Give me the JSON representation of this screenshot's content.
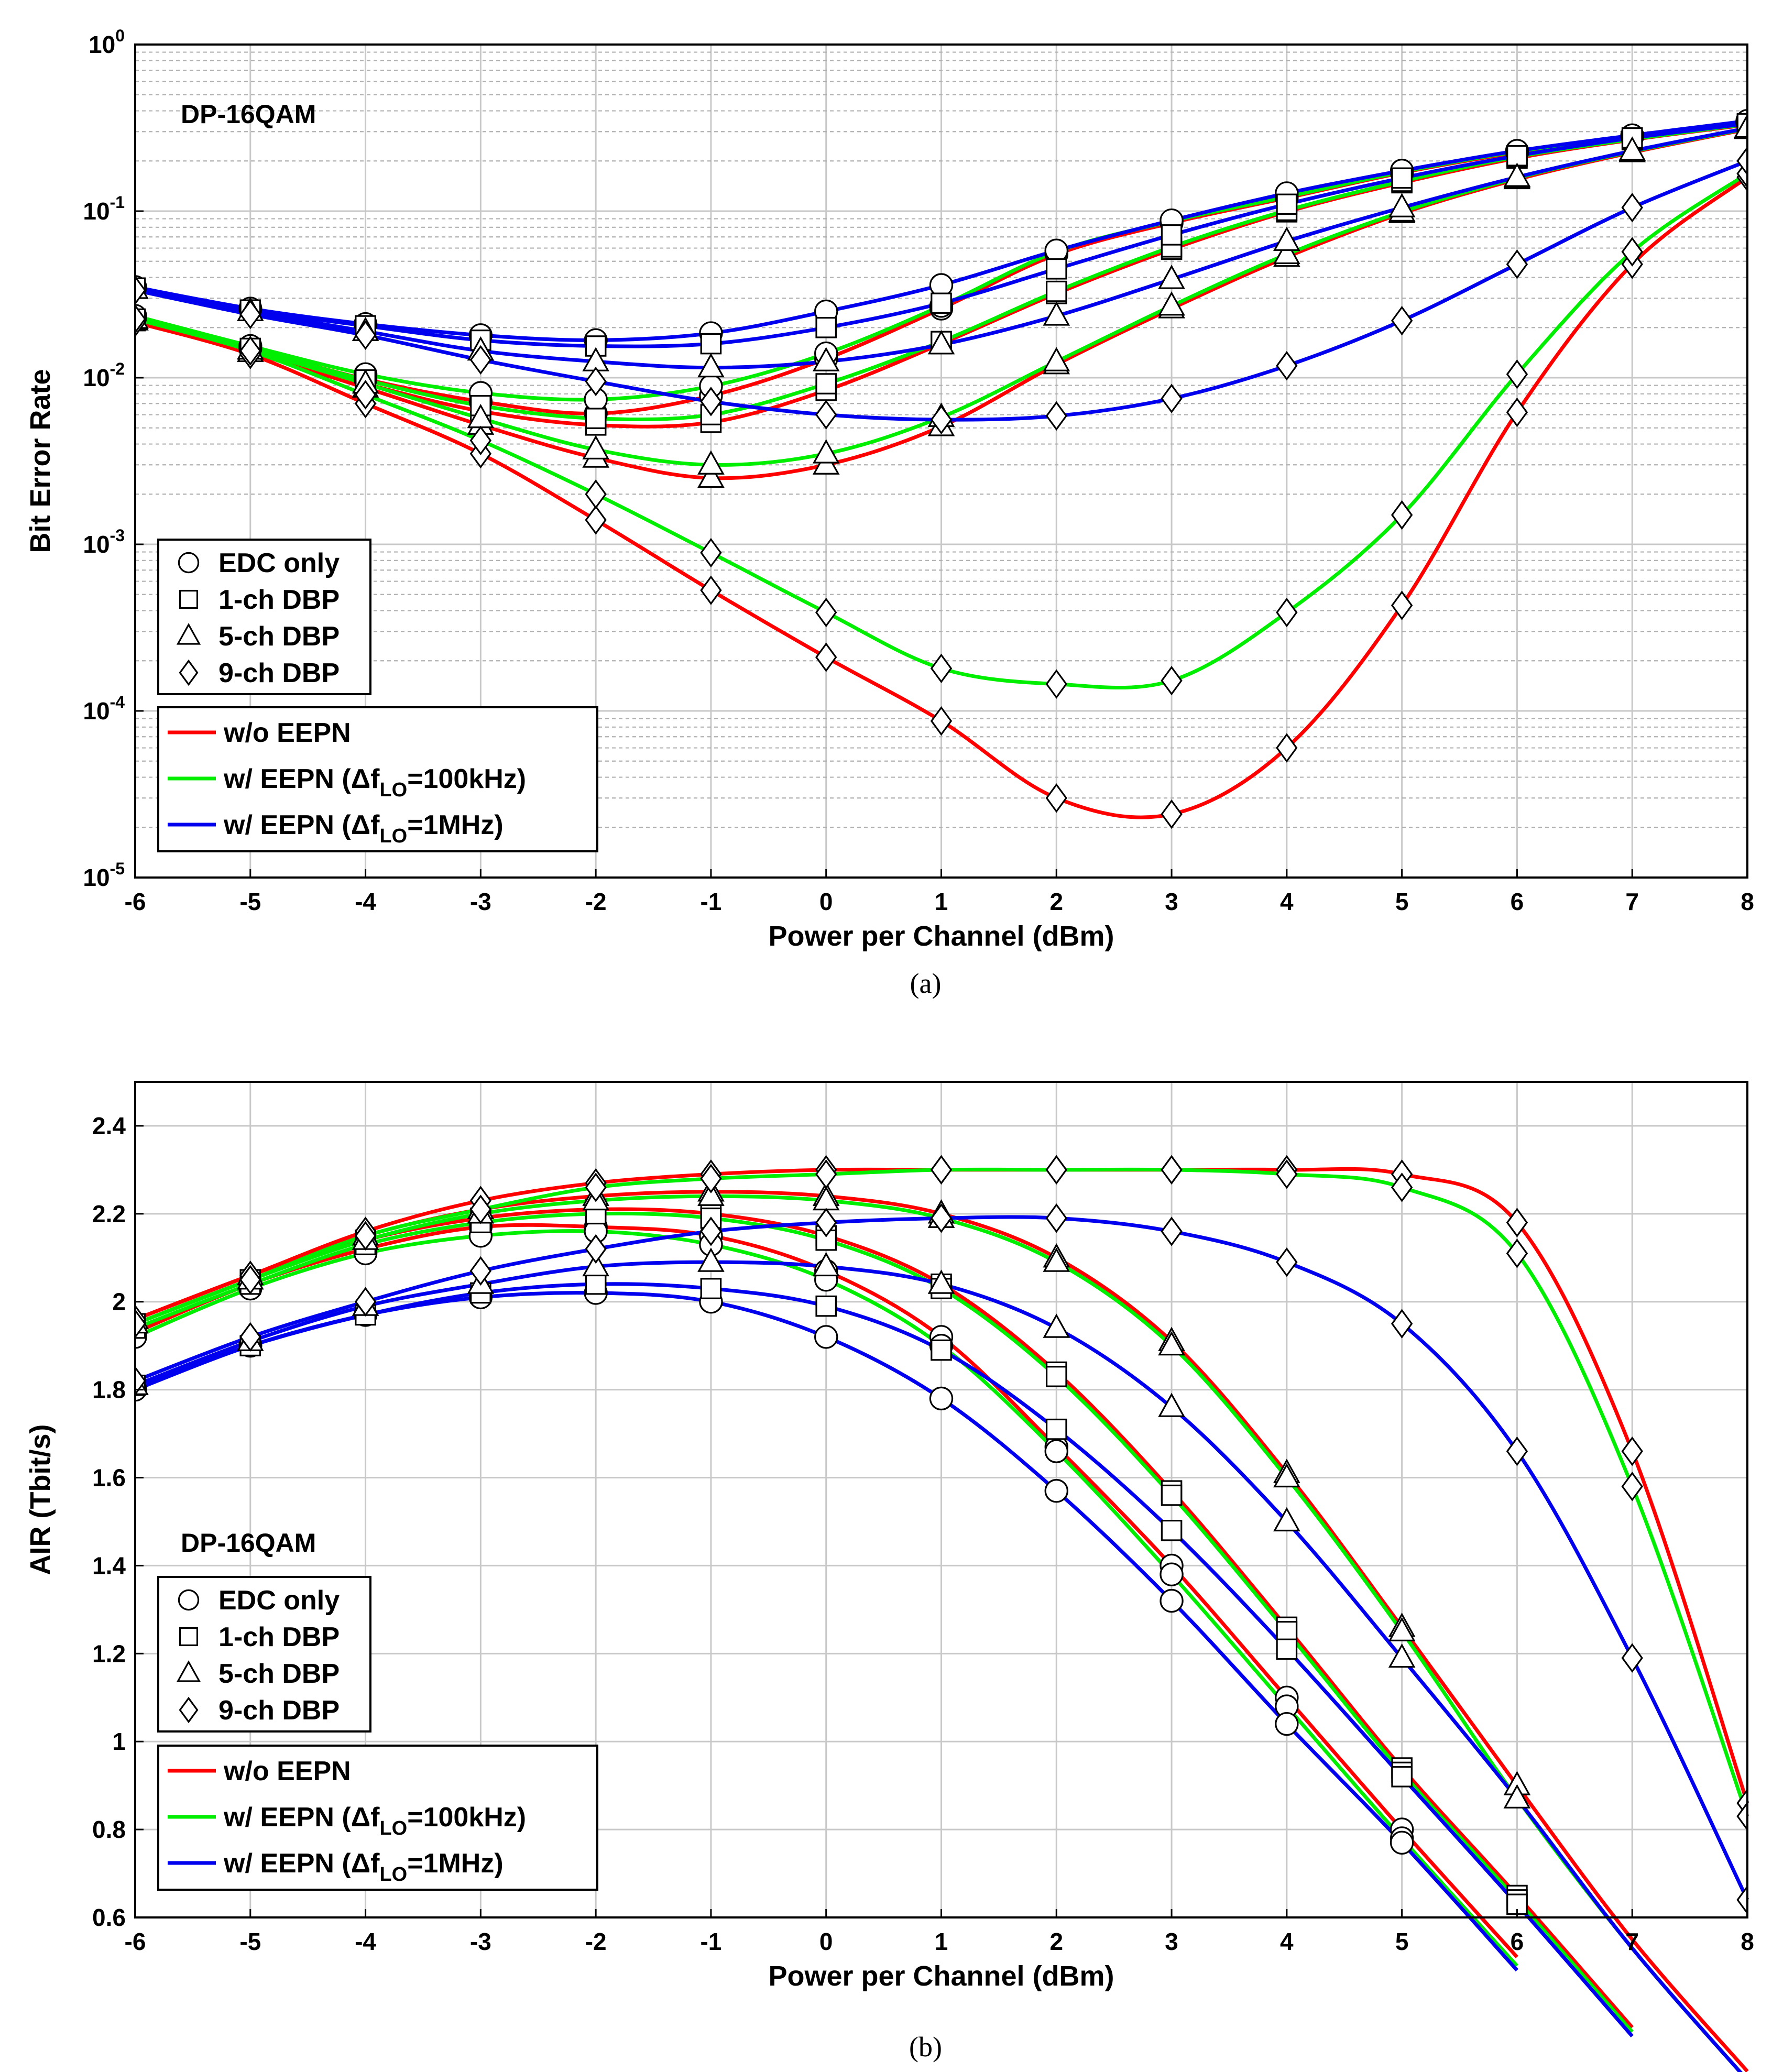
{
  "colors": {
    "red": "#ff0000",
    "green": "#00ee00",
    "blue": "#0000ee",
    "axis": "#000000",
    "grid": "#c8c8c8",
    "gridMinor": "#b0b0b0"
  },
  "legend_markers": [
    {
      "key": "edc",
      "shape": "circle",
      "label": "EDC only"
    },
    {
      "key": "dbp1",
      "shape": "square",
      "label": "1-ch DBP"
    },
    {
      "key": "dbp5",
      "shape": "triangle",
      "label": "5-ch DBP"
    },
    {
      "key": "dbp9",
      "shape": "diamond",
      "label": "9-ch DBP"
    }
  ],
  "legend_lines": [
    {
      "key": "red",
      "pre": "w/o EEPN",
      "sub": "",
      "post": ""
    },
    {
      "key": "green",
      "pre": "w/ EEPN (Δf",
      "sub": "LO",
      "post": "=100kHz)"
    },
    {
      "key": "blue",
      "pre": "w/ EEPN (Δf",
      "sub": "LO",
      "post": "=1MHz)"
    }
  ],
  "chart_data": [
    {
      "id": "a",
      "type": "line",
      "yscale": "log",
      "caption": "(a)",
      "annotation": "DP-16QAM",
      "xlabel": "Power per Channel (dBm)",
      "ylabel": "Bit Error Rate",
      "xlim": [
        -6,
        8
      ],
      "ylim": [
        1e-05,
        1
      ],
      "grid": true,
      "legend_position": "bottom-left",
      "x": [
        -6,
        -5,
        -4,
        -3,
        -2,
        -1,
        0,
        1,
        2,
        3,
        4,
        5,
        6,
        7,
        8
      ],
      "xticks": [
        -6,
        -5,
        -4,
        -3,
        -2,
        -1,
        0,
        1,
        2,
        3,
        4,
        5,
        6,
        7,
        8
      ],
      "yticks": [
        {
          "value": 1,
          "base": "10",
          "exp": "0"
        },
        {
          "value": 0.1,
          "base": "10",
          "exp": "-1"
        },
        {
          "value": 0.01,
          "base": "10",
          "exp": "-2"
        },
        {
          "value": 0.001,
          "base": "10",
          "exp": "-3"
        },
        {
          "value": 0.0001,
          "base": "10",
          "exp": "-4"
        },
        {
          "value": 1e-05,
          "base": "10",
          "exp": "-5"
        }
      ],
      "series": [
        {
          "name": "EDC only, w/o EEPN",
          "color": "red",
          "marker": "circle",
          "values": [
            0.023,
            0.015,
            0.0098,
            0.0072,
            0.0061,
            0.0078,
            0.013,
            0.026,
            0.055,
            0.085,
            0.12,
            0.17,
            0.225,
            0.28,
            0.34
          ]
        },
        {
          "name": "EDC only, w/ EEPN (100kHz)",
          "color": "green",
          "marker": "circle",
          "values": [
            0.0235,
            0.0155,
            0.0105,
            0.0081,
            0.0074,
            0.0089,
            0.014,
            0.027,
            0.057,
            0.087,
            0.122,
            0.172,
            0.228,
            0.283,
            0.345
          ]
        },
        {
          "name": "EDC only, w/ EEPN (1MHz)",
          "color": "blue",
          "marker": "circle",
          "values": [
            0.035,
            0.026,
            0.021,
            0.018,
            0.0168,
            0.0185,
            0.025,
            0.036,
            0.058,
            0.088,
            0.128,
            0.175,
            0.23,
            0.285,
            0.348
          ]
        },
        {
          "name": "1-ch DBP, w/o EEPN",
          "color": "red",
          "marker": "square",
          "values": [
            0.022,
            0.0145,
            0.0092,
            0.0063,
            0.0052,
            0.0054,
            0.0084,
            0.016,
            0.032,
            0.059,
            0.099,
            0.148,
            0.208,
            0.268,
            0.33
          ]
        },
        {
          "name": "1-ch DBP, w/ EEPN (100kHz)",
          "color": "green",
          "marker": "square",
          "values": [
            0.0225,
            0.015,
            0.0097,
            0.0068,
            0.0057,
            0.006,
            0.0092,
            0.0165,
            0.033,
            0.061,
            0.101,
            0.151,
            0.212,
            0.27,
            0.333
          ]
        },
        {
          "name": "1-ch DBP, w/ EEPN (1MHz)",
          "color": "blue",
          "marker": "square",
          "values": [
            0.0345,
            0.0255,
            0.0205,
            0.0168,
            0.0155,
            0.016,
            0.02,
            0.028,
            0.045,
            0.072,
            0.11,
            0.158,
            0.215,
            0.275,
            0.335
          ]
        },
        {
          "name": "5-ch DBP, w/o EEPN",
          "color": "red",
          "marker": "triangle",
          "values": [
            0.022,
            0.0142,
            0.0087,
            0.0052,
            0.0033,
            0.0025,
            0.003,
            0.0051,
            0.012,
            0.026,
            0.053,
            0.097,
            0.155,
            0.225,
            0.31
          ]
        },
        {
          "name": "5-ch DBP, w/ EEPN (100kHz)",
          "color": "green",
          "marker": "triangle",
          "values": [
            0.0225,
            0.0147,
            0.0092,
            0.0057,
            0.0037,
            0.003,
            0.0035,
            0.0058,
            0.0125,
            0.027,
            0.055,
            0.099,
            0.158,
            0.228,
            0.313
          ]
        },
        {
          "name": "5-ch DBP, w/ EEPN (1MHz)",
          "color": "blue",
          "marker": "triangle",
          "values": [
            0.034,
            0.025,
            0.019,
            0.0145,
            0.0125,
            0.0115,
            0.0125,
            0.0158,
            0.0235,
            0.039,
            0.066,
            0.105,
            0.16,
            0.23,
            0.315
          ]
        },
        {
          "name": "9-ch DBP, w/o EEPN",
          "color": "red",
          "marker": "diamond",
          "values": [
            0.0215,
            0.0138,
            0.007,
            0.0035,
            0.0014,
            0.00053,
            0.00021,
            8.7e-05,
            3e-05,
            2.4e-05,
            6e-05,
            0.00043,
            0.0062,
            0.048,
            0.16
          ]
        },
        {
          "name": "9-ch DBP, w/ EEPN (100kHz)",
          "color": "green",
          "marker": "diamond",
          "values": [
            0.0225,
            0.0145,
            0.0079,
            0.0042,
            0.002,
            0.00089,
            0.00039,
            0.00018,
            0.000145,
            0.000152,
            0.00039,
            0.0015,
            0.0105,
            0.057,
            0.168
          ]
        },
        {
          "name": "9-ch DBP, w/ EEPN (1MHz)",
          "color": "blue",
          "marker": "diamond",
          "values": [
            0.0335,
            0.024,
            0.018,
            0.0128,
            0.0095,
            0.0072,
            0.006,
            0.0056,
            0.0059,
            0.0075,
            0.0118,
            0.022,
            0.048,
            0.105,
            0.2
          ]
        }
      ]
    },
    {
      "id": "b",
      "type": "line",
      "yscale": "linear",
      "caption": "(b)",
      "annotation": "DP-16QAM",
      "xlabel": "Power per Channel (dBm)",
      "ylabel": "AIR (Tbit/s)",
      "xlim": [
        -6,
        8
      ],
      "ylim": [
        0.6,
        2.5
      ],
      "grid": true,
      "legend_position": "bottom-left",
      "x": [
        -6,
        -5,
        -4,
        -3,
        -2,
        -1,
        0,
        1,
        2,
        3,
        4,
        5,
        6,
        7,
        8
      ],
      "xticks": [
        -6,
        -5,
        -4,
        -3,
        -2,
        -1,
        0,
        1,
        2,
        3,
        4,
        5,
        6,
        7,
        8
      ],
      "yticks": [
        {
          "value": 0.6,
          "label": "0.6"
        },
        {
          "value": 0.8,
          "label": "0.8"
        },
        {
          "value": 1,
          "label": "1"
        },
        {
          "value": 1.2,
          "label": "1.2"
        },
        {
          "value": 1.4,
          "label": "1.4"
        },
        {
          "value": 1.6,
          "label": "1.6"
        },
        {
          "value": 1.8,
          "label": "1.8"
        },
        {
          "value": 2,
          "label": "2"
        },
        {
          "value": 2.2,
          "label": "2.2"
        },
        {
          "value": 2.4,
          "label": "2.4"
        }
      ],
      "series": [
        {
          "name": "EDC only, w/o EEPN",
          "color": "red",
          "marker": "circle",
          "values": [
            1.93,
            2.04,
            2.12,
            2.17,
            2.17,
            2.15,
            2.07,
            1.92,
            1.67,
            1.4,
            1.1,
            0.8,
            0.51,
            null,
            null
          ]
        },
        {
          "name": "EDC only, w/ EEPN (100kHz)",
          "color": "green",
          "marker": "circle",
          "values": [
            1.92,
            2.03,
            2.11,
            2.15,
            2.16,
            2.13,
            2.05,
            1.9,
            1.66,
            1.38,
            1.08,
            0.78,
            0.49,
            null,
            null
          ]
        },
        {
          "name": "EDC only, w/ EEPN (1MHz)",
          "color": "blue",
          "marker": "circle",
          "values": [
            1.8,
            1.9,
            1.97,
            2.01,
            2.02,
            2.0,
            1.92,
            1.78,
            1.57,
            1.32,
            1.04,
            0.77,
            0.48,
            null,
            null
          ]
        },
        {
          "name": "1-ch DBP, w/o EEPN",
          "color": "red",
          "marker": "square",
          "values": [
            1.95,
            2.05,
            2.14,
            2.19,
            2.21,
            2.2,
            2.15,
            2.04,
            1.84,
            1.57,
            1.26,
            0.94,
            0.65,
            0.35,
            null
          ]
        },
        {
          "name": "1-ch DBP, w/ EEPN (100kHz)",
          "color": "green",
          "marker": "square",
          "values": [
            1.94,
            2.04,
            2.13,
            2.18,
            2.2,
            2.19,
            2.14,
            2.03,
            1.83,
            1.56,
            1.25,
            0.93,
            0.64,
            0.34,
            null
          ]
        },
        {
          "name": "1-ch DBP, w/ EEPN (1MHz)",
          "color": "blue",
          "marker": "square",
          "values": [
            1.81,
            1.9,
            1.97,
            2.02,
            2.04,
            2.03,
            1.99,
            1.89,
            1.71,
            1.48,
            1.21,
            0.92,
            0.63,
            0.33,
            null
          ]
        },
        {
          "name": "5-ch DBP, w/o EEPN",
          "color": "red",
          "marker": "triangle",
          "values": [
            1.96,
            2.06,
            2.15,
            2.21,
            2.24,
            2.25,
            2.24,
            2.2,
            2.1,
            1.91,
            1.61,
            1.26,
            0.9,
            0.55,
            0.25
          ]
        },
        {
          "name": "5-ch DBP, w/ EEPN (100kHz)",
          "color": "green",
          "marker": "triangle",
          "values": [
            1.95,
            2.05,
            2.14,
            2.2,
            2.23,
            2.24,
            2.23,
            2.19,
            2.09,
            1.9,
            1.6,
            1.25,
            0.87,
            0.53,
            0.23
          ]
        },
        {
          "name": "5-ch DBP, w/ EEPN (1MHz)",
          "color": "blue",
          "marker": "triangle",
          "values": [
            1.81,
            1.91,
            1.99,
            2.04,
            2.08,
            2.09,
            2.08,
            2.04,
            1.94,
            1.76,
            1.5,
            1.19,
            0.87,
            0.53,
            0.23
          ]
        },
        {
          "name": "9-ch DBP, w/o EEPN",
          "color": "red",
          "marker": "diamond",
          "values": [
            1.96,
            2.06,
            2.16,
            2.23,
            2.27,
            2.29,
            2.3,
            2.3,
            2.3,
            2.3,
            2.3,
            2.29,
            2.18,
            1.66,
            0.86
          ]
        },
        {
          "name": "9-ch DBP, w/ EEPN (100kHz)",
          "color": "green",
          "marker": "diamond",
          "values": [
            1.95,
            2.05,
            2.15,
            2.21,
            2.26,
            2.28,
            2.29,
            2.3,
            2.3,
            2.3,
            2.29,
            2.26,
            2.11,
            1.58,
            0.83
          ]
        },
        {
          "name": "9-ch DBP, w/ EEPN (1MHz)",
          "color": "blue",
          "marker": "diamond",
          "values": [
            1.82,
            1.92,
            2.0,
            2.07,
            2.12,
            2.16,
            2.18,
            2.19,
            2.19,
            2.16,
            2.09,
            1.95,
            1.66,
            1.19,
            0.64
          ]
        }
      ]
    }
  ]
}
